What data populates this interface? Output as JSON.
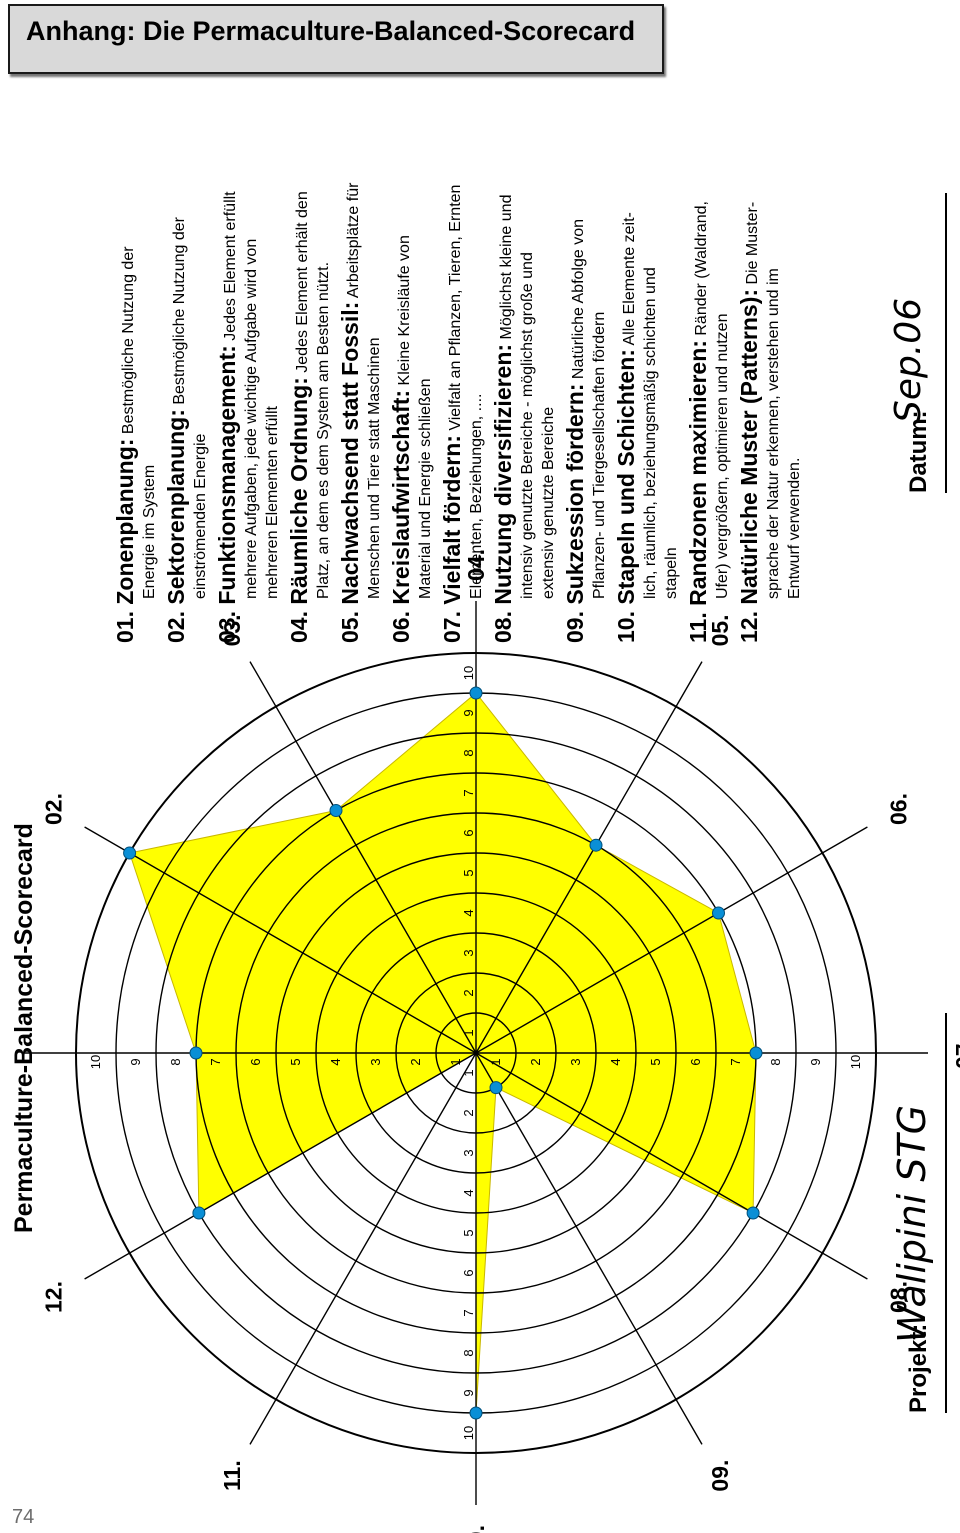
{
  "header": {
    "title": "Anhang: Die Permaculture-Balanced-Scorecard"
  },
  "page_number": "74",
  "project": {
    "label": "Projekt:",
    "value": "Walipini STG"
  },
  "date": {
    "label": "Datum:",
    "value": "Sep.06"
  },
  "legend": [
    {
      "head": "01. Zonenplanung:",
      "desc": [
        "Bestmögliche Nutzung der",
        "Energie im System"
      ]
    },
    {
      "head": "02. Sektorenplanung:",
      "desc": [
        "Bestmögliche Nutzung der",
        "einströmenden Energie"
      ]
    },
    {
      "head": "03. Funktionsmanagement:",
      "desc": [
        "Jedes Element erfüllt",
        "mehrere Aufgaben, jede wichtige Aufgabe wird von",
        "mehreren Elementen erfüllt"
      ]
    },
    {
      "head": "04. Räumliche Ordnung:",
      "desc": [
        "Jedes Element erhält den",
        "Platz, an dem es dem System am Besten nützt."
      ]
    },
    {
      "head": "05. Nachwachsend statt Fossil:",
      "desc": [
        "Arbeitsplätze für",
        "Menschen und Tiere statt Maschinen"
      ]
    },
    {
      "head": "06. Kreislaufwirtschaft:",
      "desc": [
        "Kleine Kreisläufe von",
        "Material und Energie schließen"
      ]
    },
    {
      "head": "07. Vielfalt fördern:",
      "desc": [
        "Vielfalt an Pflanzen, Tieren, Ernten",
        "Elementen, Beziehungen, ...."
      ]
    },
    {
      "head": "08. Nutzung diversifizieren:",
      "desc": [
        "Möglichst kleine und",
        "intensiv genutzte Bereiche - möglichst große und",
        "extensiv genutzte Bereiche"
      ]
    },
    {
      "head": "09. Sukzession fördern:",
      "desc": [
        "Natürliche Abfolge von",
        "Pflanzen- und Tiergesellschaften fördern"
      ]
    },
    {
      "head": "10. Stapeln und Schichten:",
      "desc": [
        "Alle Elemente zeit-",
        "lich, räumlich, beziehungsmäßig schichten und",
        "stapeln"
      ]
    },
    {
      "head": "11. Randzonen maximieren:",
      "desc": [
        "Ränder (Waldrand,",
        "Ufer) vergrößern, optimieren und nutzen"
      ]
    },
    {
      "head": "12. Natürliche Muster (Patterns):",
      "desc": [
        "Die Muster-",
        "sprache der Natur erkennen, verstehen und im",
        "Entwurf verwenden."
      ]
    }
  ],
  "chart_data": {
    "type": "radar",
    "title": "Permaculture-Balanced-Scorecard",
    "categories": [
      "01.",
      "02.",
      "03.",
      "04.",
      "05.",
      "06.",
      "07.",
      "08.",
      "09.",
      "10.",
      "11.",
      "12."
    ],
    "values": [
      7,
      10,
      7,
      9,
      6,
      7,
      7,
      8,
      1,
      9,
      0,
      8
    ],
    "rlim": [
      0,
      10
    ],
    "radial_ticks": [
      1,
      2,
      3,
      4,
      5,
      6,
      7,
      8,
      9,
      10
    ],
    "fill_color": "#ffff00",
    "marker_color": "#0a8fd6",
    "grid": true
  }
}
